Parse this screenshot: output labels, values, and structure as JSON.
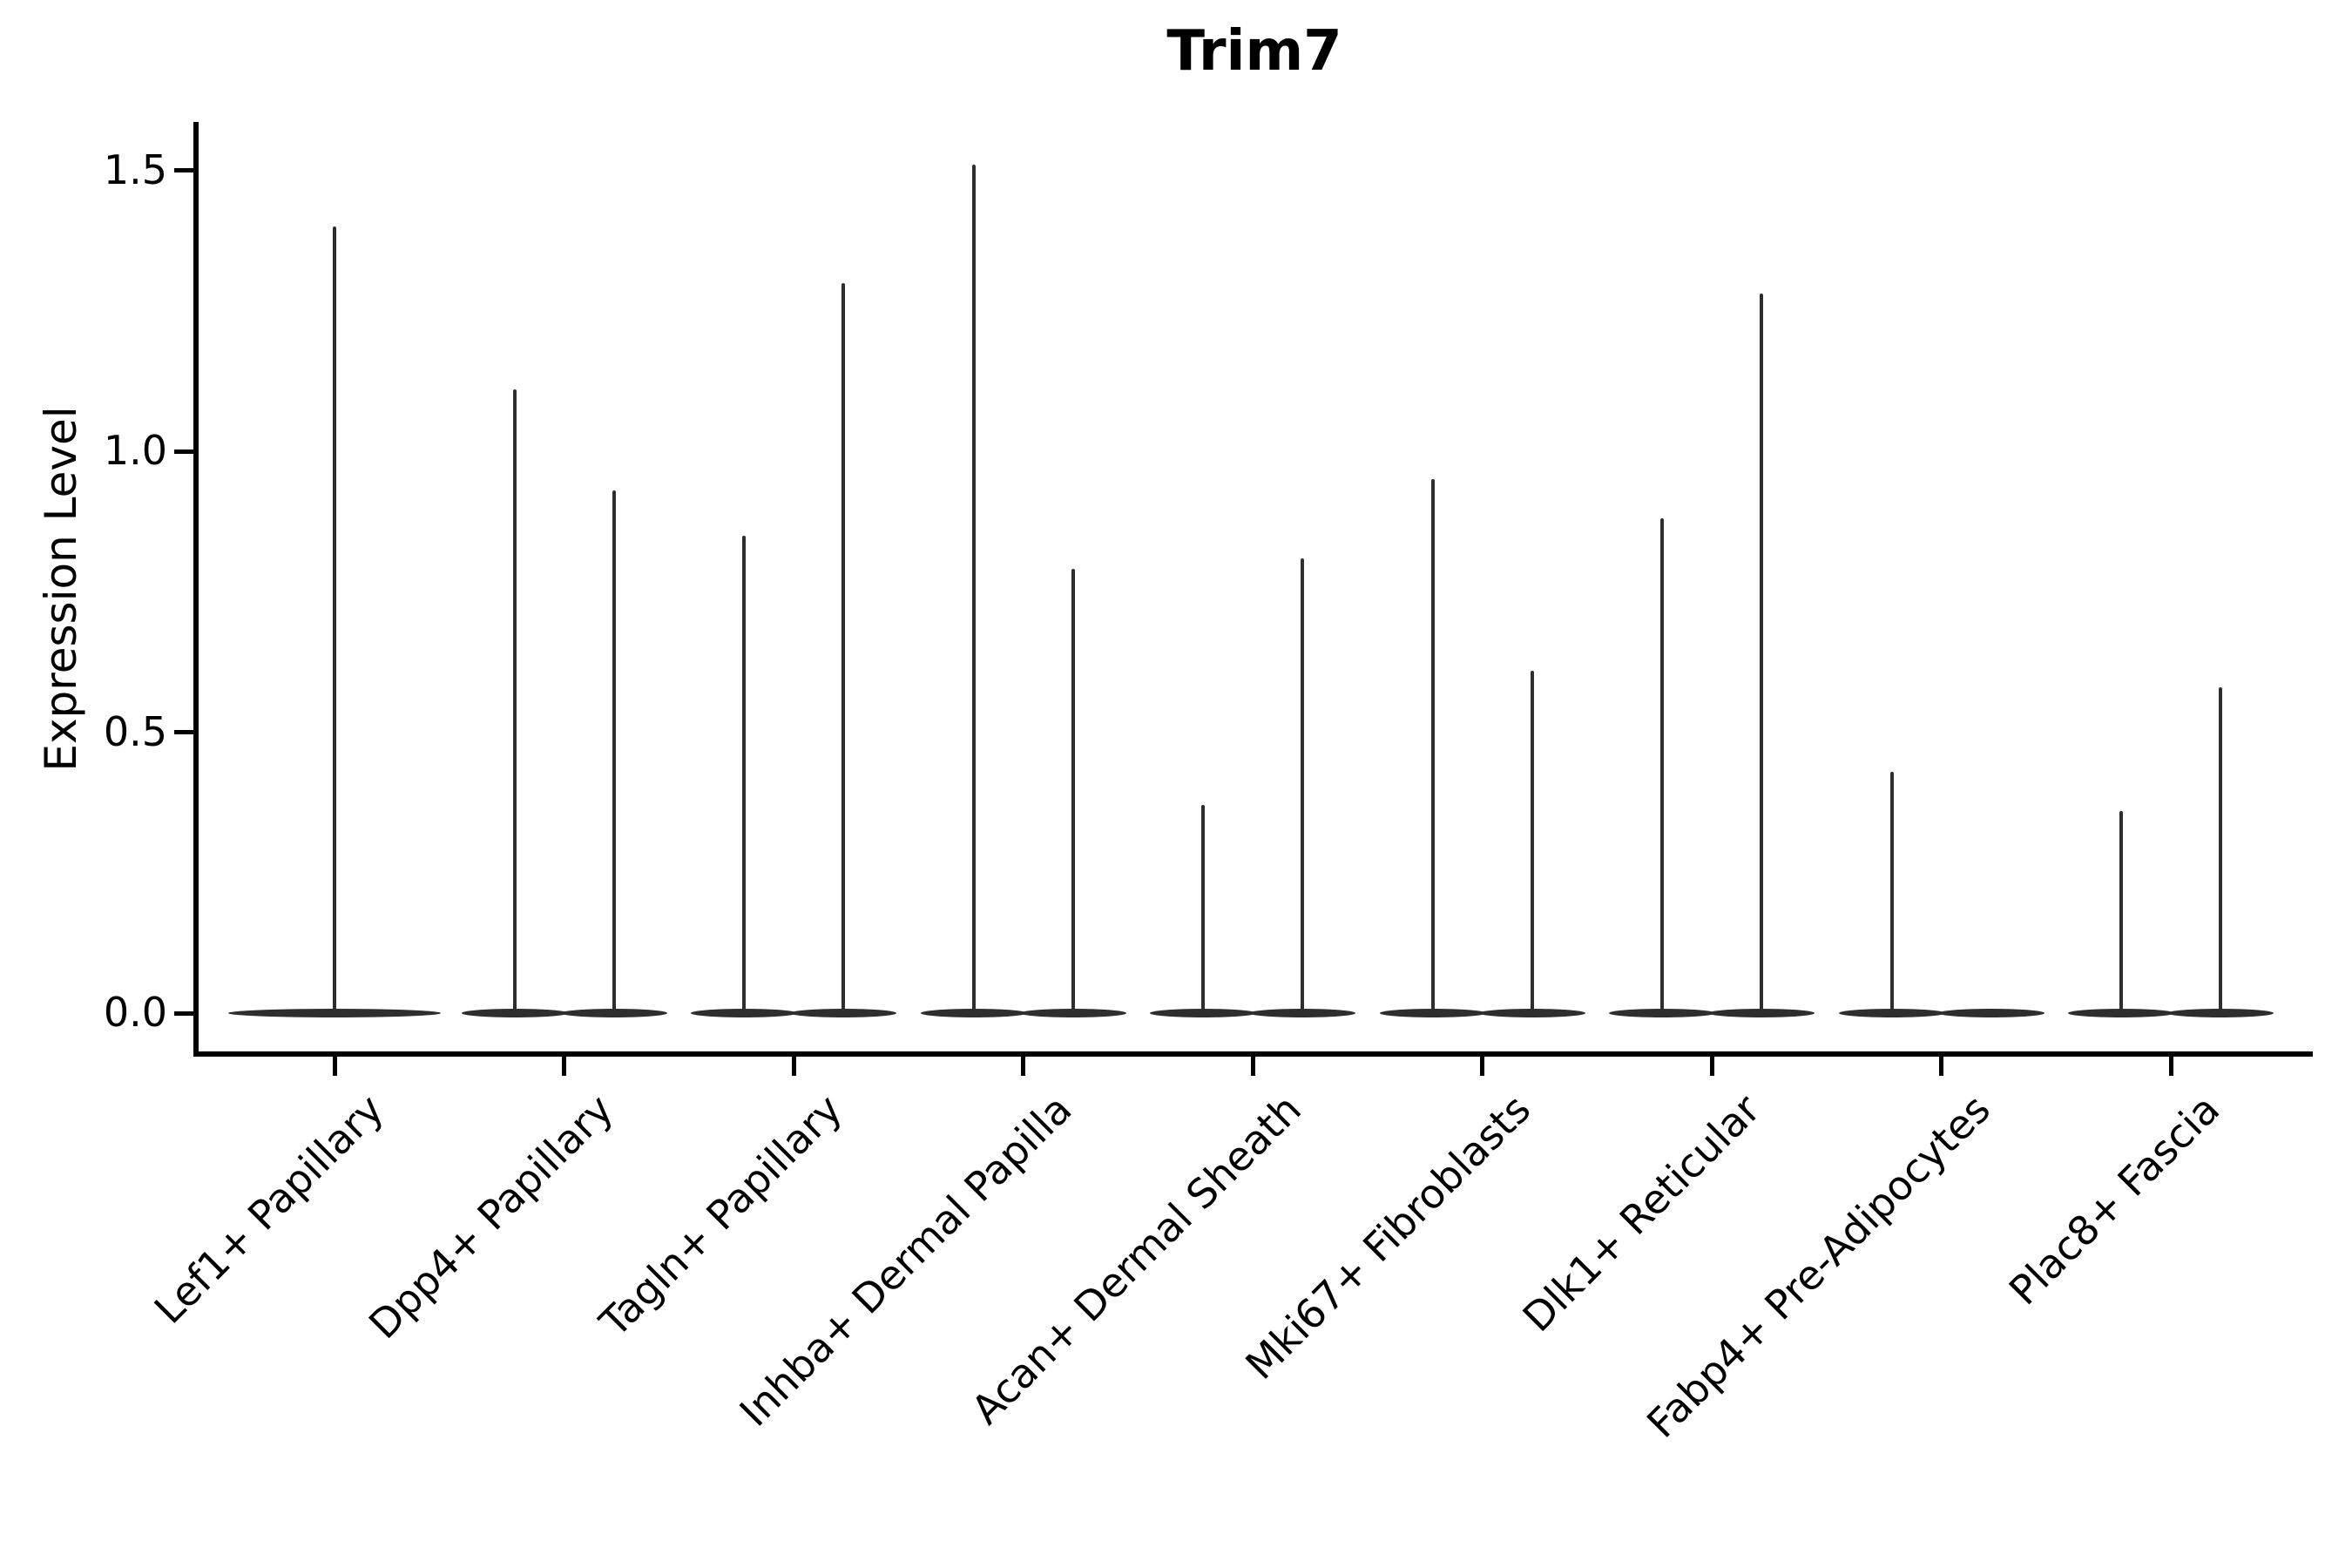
{
  "title": "Trim7",
  "axes": {
    "ylabel": "Expression Level",
    "ytick_labels": [
      "0.0",
      "0.5",
      "1.0",
      "1.5"
    ]
  },
  "chart_data": {
    "type": "violin",
    "title": "Trim7",
    "xlabel": "",
    "ylabel": "Expression Level",
    "yticks": [
      0.0,
      0.5,
      1.0,
      1.5
    ],
    "ylim": [
      -0.07,
      1.57
    ],
    "grid": false,
    "legend": "none",
    "violin_color": "#2e2e2e",
    "axis_color": "#000000",
    "description": "Sparse single-cell expression violins: each group shows flat density pancakes at 0 with thin spikes reaching the maximum expression value per violin; most groups contain two side-by-side violins, Lef1+ Papillary has a single full-width violin, and the second violin of Fabp4+ Pre-Adipocytes has no expressing cells (height 0).",
    "categories": [
      "Lef1+ Papillary",
      "Dpp4+ Papillary",
      "Tagln+ Papillary",
      "Inhba+ Dermal Papilla",
      "Acan+ Dermal Sheath",
      "Mki67+ Fibroblasts",
      "Dlk1+ Reticular",
      "Fabp4+ Pre-Adipocytes",
      "Plac8+ Fascia"
    ],
    "groups": [
      {
        "label": "Lef1+ Papillary",
        "spike_max_values": [
          1.4
        ]
      },
      {
        "label": "Dpp4+ Papillary",
        "spike_max_values": [
          1.11,
          0.93
        ]
      },
      {
        "label": "Tagln+ Papillary",
        "spike_max_values": [
          0.85,
          1.3
        ]
      },
      {
        "label": "Inhba+ Dermal Papilla",
        "spike_max_values": [
          1.51,
          0.79
        ]
      },
      {
        "label": "Acan+ Dermal Sheath",
        "spike_max_values": [
          0.37,
          0.81
        ]
      },
      {
        "label": "Mki67+ Fibroblasts",
        "spike_max_values": [
          0.95,
          0.61
        ]
      },
      {
        "label": "Dlk1+ Reticular",
        "spike_max_values": [
          0.88,
          1.28
        ]
      },
      {
        "label": "Fabp4+ Pre-Adipocytes",
        "spike_max_values": [
          0.43,
          0.0
        ]
      },
      {
        "label": "Plac8+ Fascia",
        "spike_max_values": [
          0.36,
          0.58
        ]
      }
    ]
  }
}
